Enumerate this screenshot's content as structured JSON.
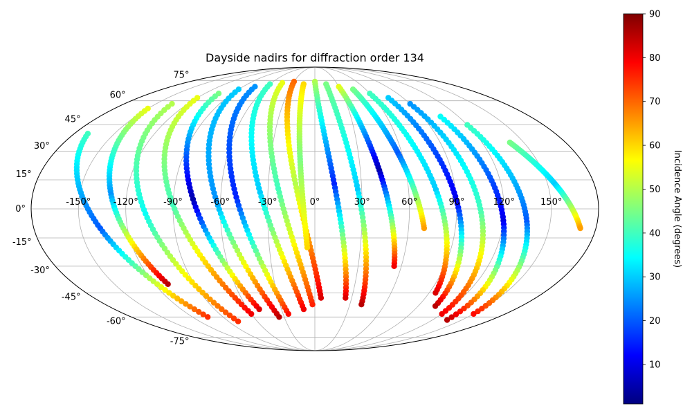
{
  "chart_data": {
    "type": "scatter",
    "title": "Dayside nadirs for diffraction order 134",
    "projection": "mollweide",
    "grid": true,
    "x_ticks": [
      -150,
      -120,
      -90,
      -60,
      -30,
      0,
      30,
      60,
      90,
      120,
      150
    ],
    "x_tick_labels": [
      "-150°",
      "-120°",
      "-90°",
      "-60°",
      "-30°",
      "0°",
      "30°",
      "60°",
      "90°",
      "120°",
      "150°"
    ],
    "y_ticks": [
      75,
      60,
      45,
      30,
      15,
      0,
      -15,
      -30,
      -45,
      -60,
      -75
    ],
    "y_tick_labels": [
      "75°",
      "60°",
      "45°",
      "30°",
      "15°",
      "0°",
      "-15°",
      "-30°",
      "-45°",
      "-60°",
      "-75°"
    ],
    "colorbar": {
      "label": "Incidence Angle (degrees)",
      "range": [
        1,
        90
      ],
      "ticks": [
        10,
        20,
        30,
        40,
        50,
        60,
        70,
        80,
        90
      ],
      "tick_labels": [
        "10",
        "20",
        "30",
        "40",
        "50",
        "60",
        "70",
        "80",
        "90"
      ],
      "colormap": "jet"
    },
    "tracks": [
      {
        "lon_north": -170,
        "lon_south": -105,
        "lat_north": 40,
        "lat_south": -60,
        "ia_north": 40,
        "ia_mid": 20,
        "ia_south": 75
      },
      {
        "lon_north": -150,
        "lon_south": -110,
        "lat_north": 55,
        "lat_south": -40,
        "ia_north": 55,
        "ia_mid": 25,
        "ia_south": 85
      },
      {
        "lon_north": -135,
        "lon_south": -80,
        "lat_north": 58,
        "lat_south": -63,
        "ia_north": 50,
        "ia_mid": 35,
        "ia_south": 75
      },
      {
        "lon_north": -120,
        "lon_south": -60,
        "lat_north": 62,
        "lat_south": -58,
        "ia_north": 55,
        "ia_mid": 40,
        "ia_south": 80
      },
      {
        "lon_north": -105,
        "lon_south": -50,
        "lat_north": 65,
        "lat_south": -55,
        "ia_north": 45,
        "ia_mid": 5,
        "ia_south": 82
      },
      {
        "lon_north": -90,
        "lon_south": -35,
        "lat_north": 68,
        "lat_south": -60,
        "ia_north": 30,
        "ia_mid": 25,
        "ia_south": 85
      },
      {
        "lon_north": -75,
        "lon_south": -25,
        "lat_north": 70,
        "lat_south": -58,
        "ia_north": 25,
        "ia_mid": 15,
        "ia_south": 78
      },
      {
        "lon_north": -60,
        "lon_south": -10,
        "lat_north": 72,
        "lat_south": -55,
        "ia_north": 40,
        "ia_mid": 30,
        "ia_south": 80
      },
      {
        "lon_north": -45,
        "lon_south": -2,
        "lat_north": 73,
        "lat_south": -52,
        "ia_north": 55,
        "ia_mid": 40,
        "ia_south": 76
      },
      {
        "lon_north": -30,
        "lon_south": 5,
        "lat_north": 74,
        "lat_south": -48,
        "ia_north": 70,
        "ia_mid": 50,
        "ia_south": 82
      },
      {
        "lon_north": -15,
        "lon_south": -5,
        "lat_north": 72,
        "lat_south": -20,
        "ia_north": 60,
        "ia_mid": 45,
        "ia_south": 60
      },
      {
        "lon_north": 0,
        "lon_south": 25,
        "lat_north": 74,
        "lat_south": -48,
        "ia_north": 50,
        "ia_mid": 15,
        "ia_south": 82
      },
      {
        "lon_north": 15,
        "lon_south": 40,
        "lat_north": 72,
        "lat_south": -52,
        "ia_north": 45,
        "ia_mid": 30,
        "ia_south": 85
      },
      {
        "lon_north": 30,
        "lon_south": 55,
        "lat_north": 70,
        "lat_south": -30,
        "ia_north": 55,
        "ia_mid": 5,
        "ia_south": 80
      },
      {
        "lon_north": 45,
        "lon_south": 70,
        "lat_north": 68,
        "lat_south": -10,
        "ia_north": 45,
        "ia_mid": 20,
        "ia_south": 65
      },
      {
        "lon_north": 60,
        "lon_south": 95,
        "lat_north": 65,
        "lat_south": -45,
        "ia_north": 40,
        "ia_mid": 30,
        "ia_south": 82
      },
      {
        "lon_north": 75,
        "lon_south": 105,
        "lat_north": 62,
        "lat_south": -53,
        "ia_north": 30,
        "ia_mid": 10,
        "ia_south": 85
      },
      {
        "lon_north": 90,
        "lon_south": 120,
        "lat_north": 58,
        "lat_south": -58,
        "ia_north": 25,
        "ia_mid": 40,
        "ia_south": 80
      },
      {
        "lon_north": 105,
        "lon_south": 135,
        "lat_north": 50,
        "lat_south": -62,
        "ia_north": 35,
        "ia_mid": 10,
        "ia_south": 85
      },
      {
        "lon_north": 120,
        "lon_south": 150,
        "lat_north": 45,
        "lat_south": -58,
        "ia_north": 40,
        "ia_mid": 20,
        "ia_south": 78
      },
      {
        "lon_north": 140,
        "lon_south": 170,
        "lat_north": 35,
        "lat_south": -10,
        "ia_north": 45,
        "ia_mid": 30,
        "ia_south": 65
      }
    ]
  }
}
